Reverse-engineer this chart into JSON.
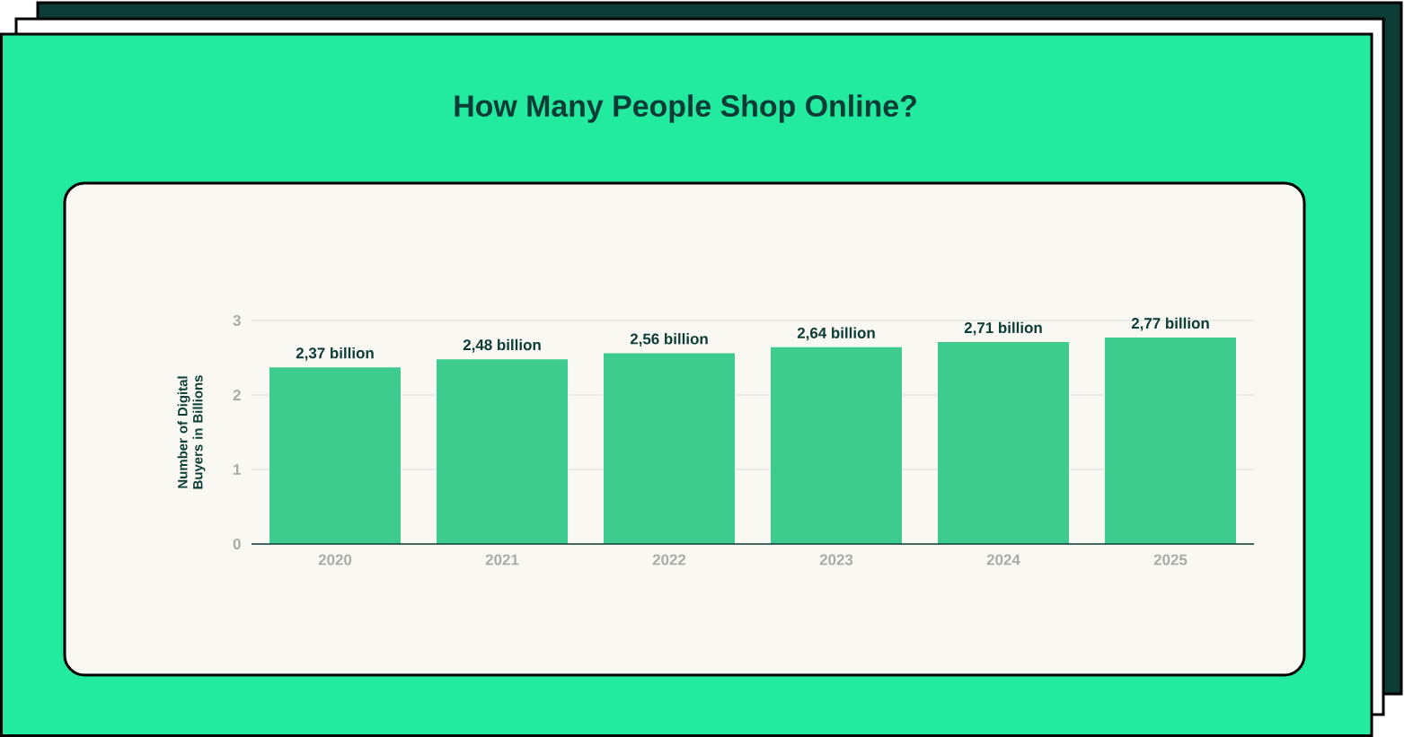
{
  "chart_data": {
    "type": "bar",
    "title": "How Many People Shop Online?",
    "ylabel": "Number of Digital Buyers in Billions",
    "categories": [
      "2020",
      "2021",
      "2022",
      "2023",
      "2024",
      "2025"
    ],
    "values": [
      2.37,
      2.48,
      2.56,
      2.64,
      2.71,
      2.77
    ],
    "value_labels": [
      "2,37 billion",
      "2,48 billion",
      "2,56 billion",
      "2,64 billion",
      "2,71 billion",
      "2,77 billion"
    ],
    "color": "#3ecc8e",
    "ylim": [
      0,
      3
    ],
    "yticks": [
      0,
      1,
      2,
      3
    ],
    "grid": "y"
  }
}
